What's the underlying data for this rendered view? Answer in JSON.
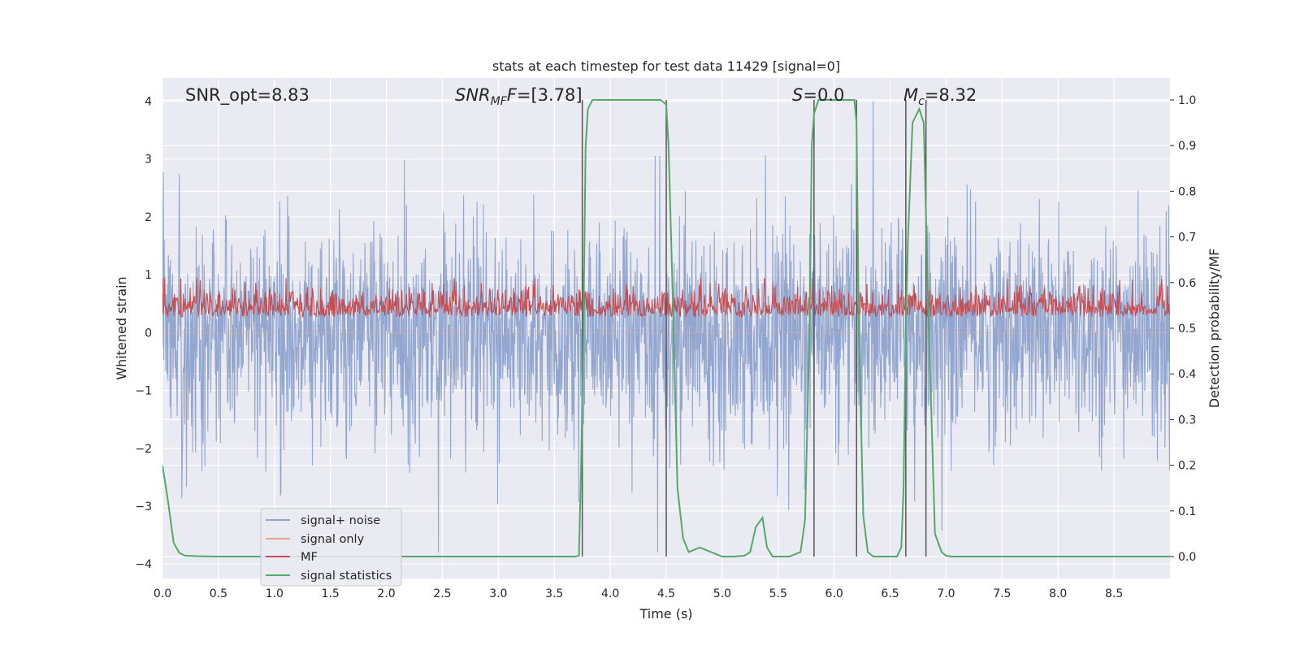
{
  "chart_data": {
    "type": "line",
    "title": "stats at each timestep for test data 11429 [signal=0]",
    "xlabel": "Time (s)",
    "ylabel": "Whitened strain",
    "y2label": "Detection probability/MF",
    "xlim": [
      0.0,
      9.0
    ],
    "ylim": [
      -4.25,
      4.4
    ],
    "y2lim": [
      -0.048,
      1.048
    ],
    "x_ticks": [
      "0.0",
      "0.5",
      "1.0",
      "1.5",
      "2.0",
      "2.5",
      "3.0",
      "3.5",
      "4.0",
      "4.5",
      "5.0",
      "5.5",
      "6.0",
      "6.5",
      "7.0",
      "7.5",
      "8.0",
      "8.5"
    ],
    "y_ticks": [
      "4",
      "3",
      "2",
      "1",
      "0",
      "−1",
      "−2",
      "−3",
      "−4"
    ],
    "y2_ticks": [
      "1.0",
      "0.9",
      "0.8",
      "0.7",
      "0.6",
      "0.5",
      "0.4",
      "0.3",
      "0.2",
      "0.1",
      "0.0"
    ],
    "annotations": {
      "snr_opt": "SNR_opt=8.83",
      "snr_mf_sym": "SNR",
      "snr_mf_sub": "MF",
      "snr_mf_tail": "=[3.78]",
      "s_sym": "S",
      "s_val": "=0.0",
      "mc_sym": "M",
      "mc_sub": "c",
      "mc_val": "=8.32"
    },
    "series": [
      {
        "name": "signal+ noise",
        "color": "#8ea2cc",
        "axis": "left",
        "kind": "noise",
        "amplitude_range": [
          -3.8,
          4.0
        ]
      },
      {
        "name": "signal only",
        "color": "#e8a48a",
        "axis": "left",
        "kind": "flat",
        "values": []
      },
      {
        "name": "MF",
        "color": "#c44e52",
        "axis": "right",
        "kind": "noise",
        "range": [
          0.49,
          0.61
        ]
      },
      {
        "name": "signal statistics",
        "color": "#55a868",
        "axis": "right",
        "kind": "line",
        "x": [
          0.0,
          0.05,
          0.1,
          0.15,
          0.2,
          0.3,
          0.5,
          1.0,
          2.0,
          3.0,
          3.5,
          3.68,
          3.72,
          3.74,
          3.76,
          3.78,
          3.8,
          3.84,
          3.9,
          4.0,
          4.3,
          4.45,
          4.5,
          4.52,
          4.56,
          4.6,
          4.65,
          4.7,
          4.8,
          4.9,
          5.0,
          5.1,
          5.2,
          5.25,
          5.3,
          5.36,
          5.4,
          5.45,
          5.5,
          5.6,
          5.7,
          5.74,
          5.78,
          5.8,
          5.82,
          5.86,
          5.9,
          5.95,
          6.0,
          6.1,
          6.18,
          6.2,
          6.22,
          6.26,
          6.3,
          6.35,
          6.4,
          6.5,
          6.56,
          6.6,
          6.62,
          6.64,
          6.66,
          6.7,
          6.76,
          6.8,
          6.84,
          6.9,
          6.96,
          7.0,
          7.05,
          7.2,
          7.5,
          8.0,
          8.5,
          9.0
        ],
        "y": [
          0.2,
          0.12,
          0.03,
          0.008,
          0.002,
          0.001,
          0.0,
          0.0,
          0.0,
          0.0,
          0.0,
          0.0,
          0.002,
          0.2,
          0.5,
          0.9,
          0.98,
          1.0,
          1.0,
          1.0,
          1.0,
          1.0,
          0.99,
          0.9,
          0.55,
          0.15,
          0.04,
          0.01,
          0.02,
          0.01,
          0.0,
          0.0,
          0.002,
          0.01,
          0.065,
          0.085,
          0.02,
          0.0,
          0.0,
          0.0,
          0.01,
          0.08,
          0.5,
          0.9,
          0.97,
          1.0,
          1.0,
          1.0,
          1.0,
          1.0,
          1.0,
          0.95,
          0.5,
          0.09,
          0.01,
          0.0,
          0.0,
          0.0,
          0.0,
          0.02,
          0.15,
          0.5,
          0.7,
          0.95,
          0.98,
          0.95,
          0.55,
          0.05,
          0.01,
          0.002,
          0.0,
          0.0,
          0.0,
          0.0,
          0.0,
          0.0
        ]
      },
      {
        "name": "detection markers",
        "color": "#555555",
        "axis": "right",
        "kind": "vlines",
        "x": [
          3.75,
          4.5,
          5.82,
          6.2,
          6.64,
          6.82
        ]
      }
    ],
    "legend_position": "lower-left",
    "grid": true
  }
}
